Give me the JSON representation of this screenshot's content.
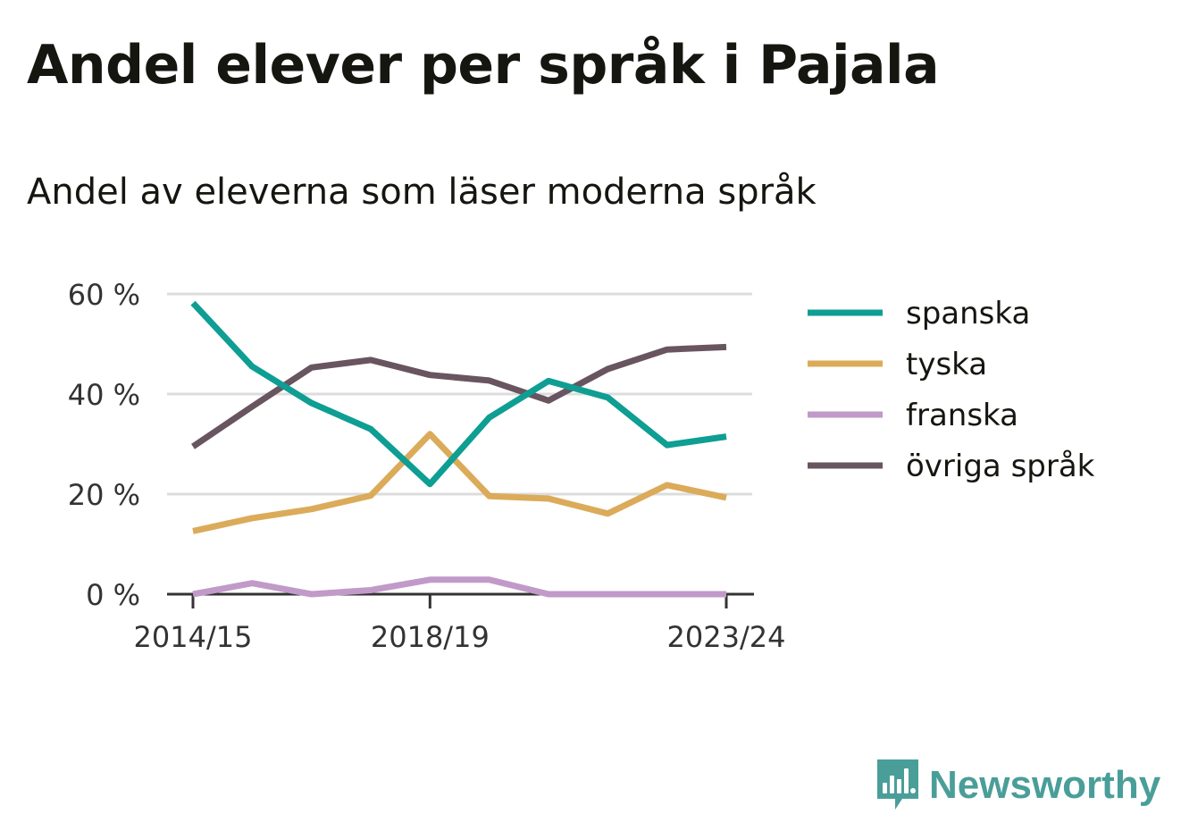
{
  "chart_data": {
    "type": "line",
    "title": "Andel elever per språk i Pajala",
    "subtitle": "Andel av eleverna som läser moderna språk",
    "x": [
      "2014/15",
      "2015/16",
      "2016/17",
      "2017/18",
      "2018/19",
      "2019/20",
      "2020/21",
      "2021/22",
      "2022/23",
      "2023/24"
    ],
    "x_tick_labels": [
      "2014/15",
      "2018/19",
      "2023/24"
    ],
    "y_ticks": [
      0,
      20,
      40,
      60
    ],
    "y_tick_labels": [
      "0 %",
      "20 %",
      "40 %",
      "60 %"
    ],
    "ylim": [
      0,
      60
    ],
    "grid": true,
    "legend_position": "right",
    "series": [
      {
        "name": "spanska",
        "color": "#0e9e93",
        "values": [
          58.2,
          45.5,
          38.2,
          33.0,
          22.0,
          35.3,
          42.6,
          39.3,
          29.8,
          31.5
        ]
      },
      {
        "name": "tyska",
        "color": "#dbab5a",
        "values": [
          12.6,
          15.2,
          17.0,
          19.7,
          32.0,
          19.6,
          19.1,
          16.1,
          21.8,
          19.3
        ]
      },
      {
        "name": "franska",
        "color": "#c19ac9",
        "values": [
          0.0,
          2.2,
          0.0,
          0.8,
          2.9,
          2.9,
          0.0,
          0.0,
          0.0,
          0.0
        ]
      },
      {
        "name": "övriga språk",
        "color": "#68555f",
        "values": [
          29.5,
          37.5,
          45.3,
          46.8,
          43.8,
          42.7,
          38.7,
          45.0,
          48.9,
          49.4
        ]
      }
    ]
  },
  "branding": {
    "logo_text": "Newsworthy",
    "logo_icon": "newsworthy-bar-chart-icon",
    "logo_color": "#4a9e99"
  }
}
